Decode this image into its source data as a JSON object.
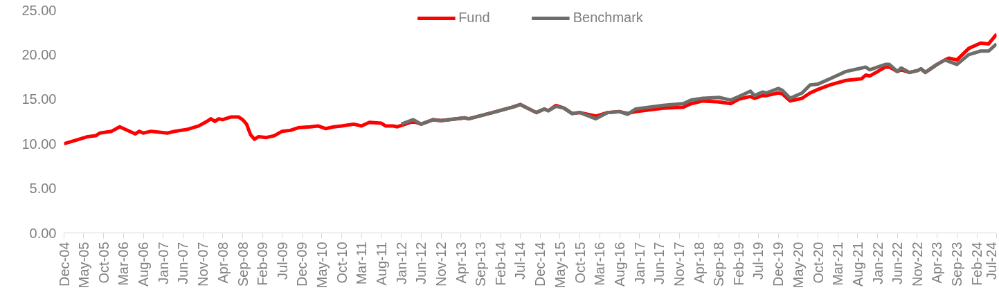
{
  "chart_data": {
    "type": "line",
    "legend": "top",
    "marker": "none",
    "line_style": "solid",
    "grid": false,
    "xlim": [
      "2004-12",
      "2024-07"
    ],
    "xticks": [
      {
        "value": "2004-12",
        "label": "Dec-04"
      },
      {
        "value": "2005-05",
        "label": "May-05"
      },
      {
        "value": "2005-10",
        "label": "Oct-05"
      },
      {
        "value": "2006-03",
        "label": "Mar-06"
      },
      {
        "value": "2006-08",
        "label": "Aug-06"
      },
      {
        "value": "2007-01",
        "label": "Jan-07"
      },
      {
        "value": "2007-06",
        "label": "Jun-07"
      },
      {
        "value": "2007-11",
        "label": "Nov-07"
      },
      {
        "value": "2008-04",
        "label": "Apr-08"
      },
      {
        "value": "2008-09",
        "label": "Sep-08"
      },
      {
        "value": "2009-02",
        "label": "Feb-09"
      },
      {
        "value": "2009-07",
        "label": "Jul-09"
      },
      {
        "value": "2009-12",
        "label": "Dec-09"
      },
      {
        "value": "2010-05",
        "label": "May-10"
      },
      {
        "value": "2010-10",
        "label": "Oct-10"
      },
      {
        "value": "2011-03",
        "label": "Mar-11"
      },
      {
        "value": "2011-08",
        "label": "Aug-11"
      },
      {
        "value": "2012-01",
        "label": "Jan-12"
      },
      {
        "value": "2012-06",
        "label": "Jun-12"
      },
      {
        "value": "2012-11",
        "label": "Nov-12"
      },
      {
        "value": "2013-04",
        "label": "Apr-13"
      },
      {
        "value": "2013-09",
        "label": "Sep-13"
      },
      {
        "value": "2014-02",
        "label": "Feb-14"
      },
      {
        "value": "2014-07",
        "label": "Jul-14"
      },
      {
        "value": "2014-12",
        "label": "Dec-14"
      },
      {
        "value": "2015-05",
        "label": "May-15"
      },
      {
        "value": "2015-10",
        "label": "Oct-15"
      },
      {
        "value": "2016-03",
        "label": "Mar-16"
      },
      {
        "value": "2016-08",
        "label": "Aug-16"
      },
      {
        "value": "2017-01",
        "label": "Jan-17"
      },
      {
        "value": "2017-06",
        "label": "Jun-17"
      },
      {
        "value": "2017-11",
        "label": "Nov-17"
      },
      {
        "value": "2018-04",
        "label": "Apr-18"
      },
      {
        "value": "2018-09",
        "label": "Sep-18"
      },
      {
        "value": "2019-02",
        "label": "Feb-19"
      },
      {
        "value": "2019-07",
        "label": "Jul-19"
      },
      {
        "value": "2019-12",
        "label": "Dec-19"
      },
      {
        "value": "2020-05",
        "label": "May-20"
      },
      {
        "value": "2020-10",
        "label": "Oct-20"
      },
      {
        "value": "2021-03",
        "label": "Mar-21"
      },
      {
        "value": "2021-08",
        "label": "Aug-21"
      },
      {
        "value": "2022-01",
        "label": "Jan-22"
      },
      {
        "value": "2022-06",
        "label": "Jun-22"
      },
      {
        "value": "2022-11",
        "label": "Nov-22"
      },
      {
        "value": "2023-04",
        "label": "Apr-23"
      },
      {
        "value": "2023-09",
        "label": "Sep-23"
      },
      {
        "value": "2024-02",
        "label": "Feb-24"
      },
      {
        "value": "2024-07",
        "label": "Jul-24"
      }
    ],
    "ylim": [
      0,
      25
    ],
    "yticks": [
      {
        "value": 0,
        "label": "0.00"
      },
      {
        "value": 5,
        "label": "5.00"
      },
      {
        "value": 10,
        "label": "10.00"
      },
      {
        "value": 15,
        "label": "15.00"
      },
      {
        "value": 20,
        "label": "20.00"
      },
      {
        "value": 25,
        "label": "25.00"
      }
    ],
    "series": [
      {
        "name": "Fund",
        "color": "#ff0000",
        "x": [
          "2004-12",
          "2005-03",
          "2005-06",
          "2005-08",
          "2005-09",
          "2005-12",
          "2006-02",
          "2006-06",
          "2006-07",
          "2006-08",
          "2006-10",
          "2006-12",
          "2007-02",
          "2007-04",
          "2007-07",
          "2007-10",
          "2007-12",
          "2008-01",
          "2008-02",
          "2008-03",
          "2008-04",
          "2008-06",
          "2008-08",
          "2008-09",
          "2008-10",
          "2008-11",
          "2008-12",
          "2009-01",
          "2009-03",
          "2009-05",
          "2009-07",
          "2009-09",
          "2009-11",
          "2010-02",
          "2010-04",
          "2010-06",
          "2010-08",
          "2010-10",
          "2011-01",
          "2011-03",
          "2011-05",
          "2011-08",
          "2011-09",
          "2011-11",
          "2011-12",
          "2012-02",
          "2012-04",
          "2012-06",
          "2012-09",
          "2012-11",
          "2013-05",
          "2013-06",
          "2013-12",
          "2014-05",
          "2014-07",
          "2014-11",
          "2015-01",
          "2015-02",
          "2015-04",
          "2015-06",
          "2015-08",
          "2015-10",
          "2016-02",
          "2016-05",
          "2016-08",
          "2016-10",
          "2016-12",
          "2017-07",
          "2017-12",
          "2018-02",
          "2018-05",
          "2018-09",
          "2018-12",
          "2019-02",
          "2019-05",
          "2019-06",
          "2019-08",
          "2019-09",
          "2019-12",
          "2020-01",
          "2020-03",
          "2020-06",
          "2020-08",
          "2020-10",
          "2021-01",
          "2021-05",
          "2021-09",
          "2021-10",
          "2021-11",
          "2022-03",
          "2022-04",
          "2022-06",
          "2022-07",
          "2022-09",
          "2022-11",
          "2022-12",
          "2023-01",
          "2023-04",
          "2023-06",
          "2023-07",
          "2023-09",
          "2023-12",
          "2024-03",
          "2024-05",
          "2024-07"
        ],
        "values": [
          10.0,
          10.4,
          10.8,
          10.9,
          11.2,
          11.4,
          11.9,
          11.1,
          11.4,
          11.2,
          11.4,
          11.3,
          11.2,
          11.4,
          11.6,
          12.0,
          12.5,
          12.8,
          12.5,
          12.8,
          12.7,
          13.0,
          13.0,
          12.7,
          12.2,
          11.0,
          10.5,
          10.8,
          10.7,
          10.9,
          11.4,
          11.5,
          11.8,
          11.9,
          12.0,
          11.7,
          11.9,
          12.0,
          12.2,
          12.0,
          12.4,
          12.3,
          12.0,
          12.0,
          11.9,
          12.2,
          12.5,
          12.2,
          12.7,
          12.6,
          12.9,
          12.8,
          13.5,
          14.1,
          14.4,
          13.5,
          13.9,
          13.7,
          14.3,
          14.0,
          13.4,
          13.5,
          13.1,
          13.5,
          13.6,
          13.4,
          13.6,
          14.0,
          14.1,
          14.5,
          14.8,
          14.7,
          14.5,
          15.0,
          15.3,
          15.1,
          15.4,
          15.4,
          15.7,
          15.6,
          14.8,
          15.1,
          15.7,
          16.1,
          16.6,
          17.1,
          17.3,
          17.7,
          17.6,
          18.6,
          18.6,
          18.1,
          18.3,
          18.0,
          18.2,
          18.4,
          18.0,
          18.9,
          19.4,
          19.6,
          19.4,
          20.7,
          21.3,
          21.2,
          22.3
        ]
      },
      {
        "name": "Benchmark",
        "color": "#6d6e6a",
        "x": [
          "2012-01",
          "2012-04",
          "2012-06",
          "2012-09",
          "2012-11",
          "2013-05",
          "2013-06",
          "2013-12",
          "2014-05",
          "2014-07",
          "2014-11",
          "2015-01",
          "2015-02",
          "2015-04",
          "2015-06",
          "2015-08",
          "2015-10",
          "2016-02",
          "2016-05",
          "2016-08",
          "2016-10",
          "2016-12",
          "2017-07",
          "2017-12",
          "2018-02",
          "2018-05",
          "2018-09",
          "2018-12",
          "2019-02",
          "2019-05",
          "2019-06",
          "2019-08",
          "2019-09",
          "2019-12",
          "2020-01",
          "2020-03",
          "2020-06",
          "2020-08",
          "2020-10",
          "2021-01",
          "2021-05",
          "2021-09",
          "2021-10",
          "2021-11",
          "2022-03",
          "2022-04",
          "2022-06",
          "2022-07",
          "2022-09",
          "2022-11",
          "2022-12",
          "2023-01",
          "2023-04",
          "2023-06",
          "2023-09",
          "2023-12",
          "2024-03",
          "2024-05",
          "2024-07"
        ],
        "values": [
          12.2,
          12.7,
          12.2,
          12.7,
          12.6,
          12.9,
          12.8,
          13.5,
          14.1,
          14.4,
          13.5,
          13.9,
          13.7,
          14.2,
          14.0,
          13.4,
          13.5,
          12.8,
          13.5,
          13.6,
          13.3,
          13.9,
          14.3,
          14.5,
          14.9,
          15.1,
          15.2,
          14.9,
          15.3,
          15.9,
          15.4,
          15.8,
          15.7,
          16.2,
          16.0,
          15.1,
          15.7,
          16.6,
          16.7,
          17.3,
          18.1,
          18.5,
          18.6,
          18.3,
          18.9,
          18.9,
          18.1,
          18.5,
          18.0,
          18.2,
          18.4,
          18.0,
          18.9,
          19.4,
          18.9,
          20.0,
          20.4,
          20.4,
          21.2
        ]
      }
    ]
  }
}
